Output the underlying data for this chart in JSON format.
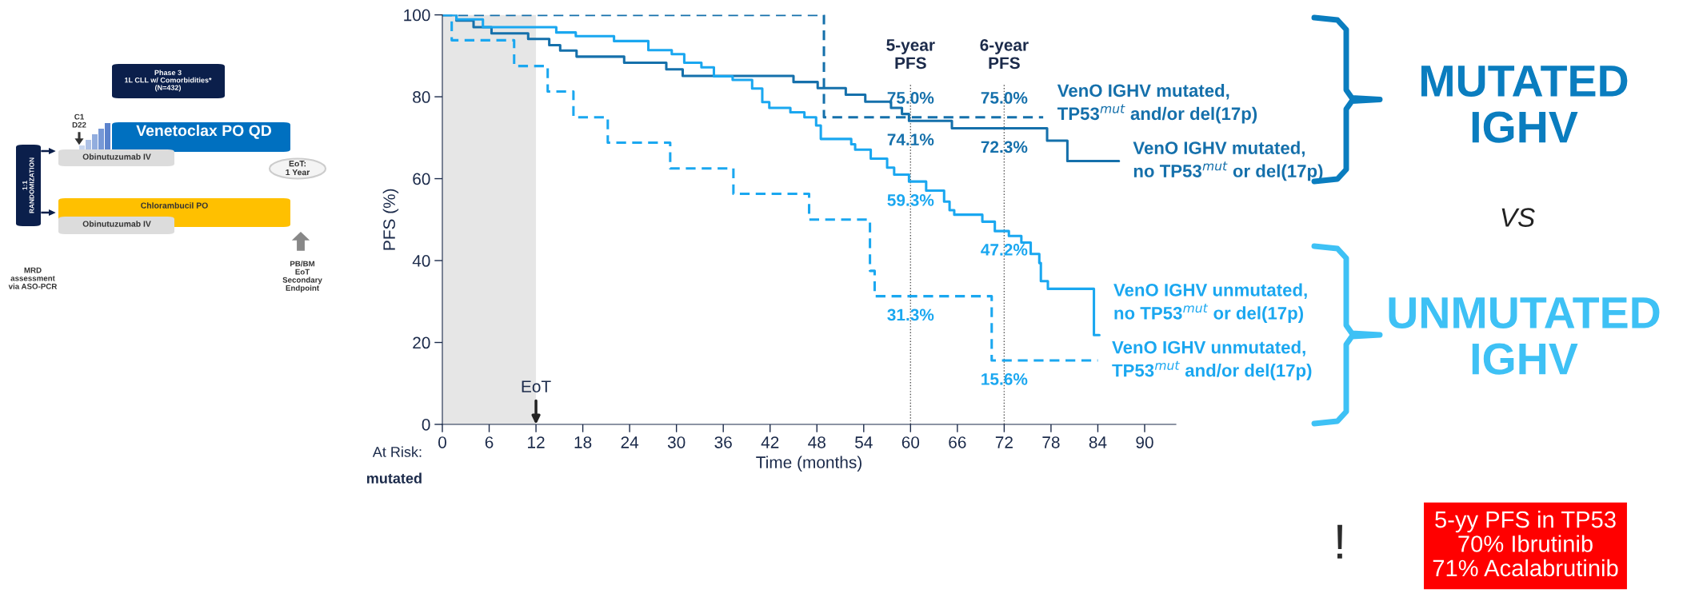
{
  "chart_data": {
    "type": "step",
    "xlabel": "Time (months)",
    "ylabel": "PFS (%)",
    "xlim": [
      0,
      94
    ],
    "ylim": [
      0,
      100
    ],
    "xticks": [
      0,
      6,
      12,
      18,
      24,
      30,
      36,
      42,
      48,
      54,
      60,
      66,
      72,
      78,
      84,
      90
    ],
    "yticks": [
      0,
      20,
      40,
      60,
      80,
      100
    ],
    "grid": false,
    "legend": false,
    "marker": "none",
    "series": [
      {
        "name": "VenO IGHV mutated,\nTP53$^{mut}$ and/or del(17p)",
        "color": "#1570ab",
        "line_style": "dashed",
        "x": [
          0,
          48.9,
          77
        ],
        "values": [
          100,
          75,
          75
        ]
      },
      {
        "name": "VenO IGHV mutated,\nno TP53$^{mut}$ or del(17p)",
        "color": "#1570ab",
        "line_style": "solid",
        "x": [
          0,
          1.8,
          4.0,
          6.3,
          11.0,
          13.7,
          15.1,
          17.2,
          23.3,
          28.7,
          30.8,
          45.0,
          48.1,
          51.7,
          54.2,
          57.5,
          58.9,
          59.8,
          65.3,
          77.5,
          80.1,
          86.7
        ],
        "values": [
          100,
          98.6,
          97,
          95.5,
          94.1,
          92.6,
          91.3,
          89.8,
          88.3,
          86.7,
          85.1,
          83.6,
          82.1,
          80.5,
          78.8,
          77.3,
          75.8,
          74.1,
          72.3,
          69.3,
          64.3,
          64.3
        ]
      },
      {
        "name": "VenO IGHV unmutated,\nno TP53$^{mut}$ or del(17p)",
        "color": "#1aa7f0",
        "line_style": "solid",
        "x": [
          0,
          1.8,
          5.2,
          14.6,
          17.1,
          22.0,
          26.4,
          29.4,
          31.0,
          33.2,
          34.8,
          37.2,
          39.7,
          41.0,
          41.9,
          44.6,
          46.4,
          47.9,
          48.5,
          52.4,
          52.9,
          54.9,
          57.0,
          57.9,
          59.8,
          62.0,
          64.3,
          65.0,
          65.6,
          69.2,
          70.8,
          72.6,
          74.2,
          75.4,
          76.5,
          76.7,
          77.6,
          83.5,
          84.2
        ],
        "values": [
          100,
          98.9,
          97,
          95.7,
          94.8,
          93.6,
          91.4,
          90.4,
          88.3,
          87.2,
          85.0,
          84.1,
          82.0,
          78.7,
          77.3,
          76.2,
          75.0,
          73.0,
          69.7,
          68.4,
          67.1,
          64.9,
          62.7,
          61.0,
          59.3,
          57.1,
          54.4,
          52.3,
          51.2,
          49.5,
          47.2,
          46.0,
          44.4,
          41.6,
          39.4,
          35.0,
          33.1,
          21.8,
          21.8
        ]
      },
      {
        "name": "VenO IGHV unmutated,\nTP53$^{mut}$ and/or del(17p)",
        "color": "#1aa7f0",
        "line_style": "dashed",
        "x": [
          0,
          1.2,
          9.2,
          13.5,
          16.8,
          21.2,
          29.2,
          37.3,
          47.0,
          54.8,
          55.4,
          70.4,
          84.0
        ],
        "values": [
          100,
          93.8,
          87.5,
          81.3,
          75,
          68.8,
          62.5,
          56.3,
          50,
          37.5,
          31.3,
          15.6,
          15.6
        ]
      }
    ],
    "ref_lines": [
      {
        "axis": "x",
        "value": 60,
        "label": "5-year\nPFS",
        "color": "#555555",
        "line_style": "dotted"
      },
      {
        "axis": "x",
        "value": 72,
        "label": "6-year\nPFS",
        "color": "#555555",
        "line_style": "dotted"
      }
    ],
    "bands": [
      {
        "axis": "x",
        "from": 0,
        "to": 12,
        "color": "#e6e6e6"
      }
    ],
    "annotations": [
      {
        "text": "EoT",
        "x": 12,
        "y": 0
      },
      {
        "text": "75.0%",
        "x": 60,
        "y": 75
      },
      {
        "text": "74.1%",
        "x": 60,
        "y": 74.1
      },
      {
        "text": "59.3%",
        "x": 60,
        "y": 59.3
      },
      {
        "text": "31.3%",
        "x": 60,
        "y": 31.3
      },
      {
        "text": "75.0%",
        "x": 72,
        "y": 75
      },
      {
        "text": "72.3%",
        "x": 72,
        "y": 72.3
      },
      {
        "text": "47.2%",
        "x": 72,
        "y": 47.2
      },
      {
        "text": "15.6%",
        "x": 72,
        "y": 15.6
      },
      "At Risk:",
      "mutated",
      "MUTATED\nIGHV",
      "VS",
      "UNMUTATED\nIGHV",
      "!",
      "5-yy PFS in TP53\n70% Ibrutinib\n71% Acalabrutinib",
      "Phase 3\n1L CLL w/ Comorbidities*\n(N=432)",
      "C1\nD22",
      "Venetoclax PO QD",
      "Obinutuzumab IV",
      "EoT:\n1 Year",
      "1:1\nRANDOMIZATION",
      "Chlorambucil PO",
      "Obinutuzumab IV",
      "PB/BM\nEoT\nSecondary\nEndpoint",
      "MRD\nassessment\nvia ASO-PCR"
    ]
  }
}
